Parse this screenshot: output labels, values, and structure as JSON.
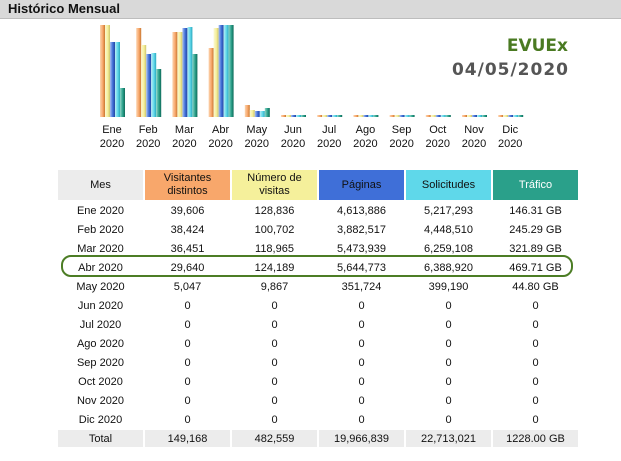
{
  "header": {
    "title": "Histórico Mensual"
  },
  "brand": "EVUEx",
  "date": "04/05/2020",
  "colors": {
    "visitantes": "#f8a76b",
    "numero": "#f5f09b",
    "paginas": "#3f6fd8",
    "solicitudes": "#5fd8ea",
    "trafico": "#2aa08a",
    "highlight": "#4c7d25"
  },
  "table": {
    "headers": {
      "mes": "Mes",
      "visitantes": "Visitantes distintos",
      "numero": "Número de visitas",
      "paginas": "Páginas",
      "solicitudes": "Solicitudes",
      "trafico": "Tráfico"
    },
    "rows": [
      [
        "Ene 2020",
        "39,606",
        "128,836",
        "4,613,886",
        "5,217,293",
        "146.31 GB"
      ],
      [
        "Feb 2020",
        "38,424",
        "100,702",
        "3,882,517",
        "4,448,510",
        "245.29 GB"
      ],
      [
        "Mar 2020",
        "36,451",
        "118,965",
        "5,473,939",
        "6,259,108",
        "321.89 GB"
      ],
      [
        "Abr 2020",
        "29,640",
        "124,189",
        "5,644,773",
        "6,388,920",
        "469.71 GB"
      ],
      [
        "May 2020",
        "5,047",
        "9,867",
        "351,724",
        "399,190",
        "44.80 GB"
      ],
      [
        "Jun 2020",
        "0",
        "0",
        "0",
        "0",
        "0"
      ],
      [
        "Jul 2020",
        "0",
        "0",
        "0",
        "0",
        "0"
      ],
      [
        "Ago 2020",
        "0",
        "0",
        "0",
        "0",
        "0"
      ],
      [
        "Sep 2020",
        "0",
        "0",
        "0",
        "0",
        "0"
      ],
      [
        "Oct 2020",
        "0",
        "0",
        "0",
        "0",
        "0"
      ],
      [
        "Nov 2020",
        "0",
        "0",
        "0",
        "0",
        "0"
      ],
      [
        "Dic 2020",
        "0",
        "0",
        "0",
        "0",
        "0"
      ]
    ],
    "total": [
      "Total",
      "149,168",
      "482,559",
      "19,966,839",
      "22,713,021",
      "1228.00 GB"
    ]
  },
  "chart_data": {
    "type": "bar",
    "categories": [
      "Ene\n2020",
      "Feb\n2020",
      "Mar\n2020",
      "Abr\n2020",
      "May\n2020",
      "Jun\n2020",
      "Jul\n2020",
      "Ago\n2020",
      "Sep\n2020",
      "Oct\n2020",
      "Nov\n2020",
      "Dic\n2020"
    ],
    "series": [
      {
        "key": "visitantes",
        "values": [
          39606,
          38424,
          36451,
          29640,
          5047,
          0,
          0,
          0,
          0,
          0,
          0,
          0
        ]
      },
      {
        "key": "numero",
        "values": [
          128836,
          100702,
          118965,
          124189,
          9867,
          0,
          0,
          0,
          0,
          0,
          0,
          0
        ]
      },
      {
        "key": "paginas",
        "values": [
          4613886,
          3882517,
          5473939,
          5644773,
          351724,
          0,
          0,
          0,
          0,
          0,
          0,
          0
        ]
      },
      {
        "key": "solicitudes",
        "values": [
          5217293,
          4448510,
          6259108,
          6388920,
          399190,
          0,
          0,
          0,
          0,
          0,
          0,
          0
        ]
      },
      {
        "key": "trafico",
        "values": [
          146.31,
          245.29,
          321.89,
          469.71,
          44.8,
          0,
          0,
          0,
          0,
          0,
          0,
          0
        ]
      }
    ],
    "highlight_row": "Abr 2020"
  }
}
